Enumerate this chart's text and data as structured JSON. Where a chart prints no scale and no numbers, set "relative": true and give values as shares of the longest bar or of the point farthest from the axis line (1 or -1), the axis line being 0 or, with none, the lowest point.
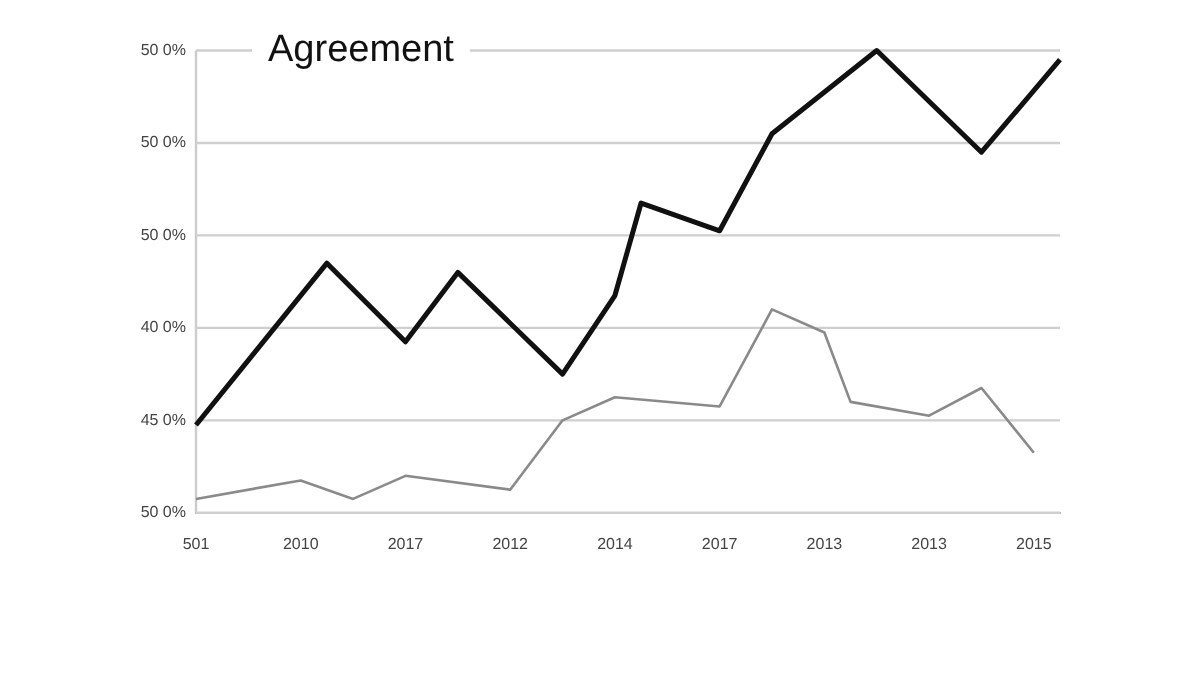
{
  "chart_data": {
    "type": "line",
    "title": "Agreement",
    "relative": true,
    "categories": [
      "501",
      null,
      null,
      null,
      "2010",
      null,
      null,
      null,
      "2017",
      null,
      null,
      null,
      "2012",
      null,
      null,
      null,
      "2014",
      null,
      null,
      null,
      "2017",
      null,
      null,
      null,
      "2013",
      null,
      null,
      null,
      "2013",
      null,
      null,
      null,
      "2015",
      null
    ],
    "annotations": [
      "50 0%",
      "50 0%",
      "50 0%",
      "40 0%",
      "45 0%",
      "50 0%"
    ],
    "grid": "y",
    "marker": "none",
    "line_style": "solid",
    "series": [
      {
        "color": "#111111",
        "values": [
          0.19,
          null,
          null,
          null,
          null,
          0.54,
          null,
          null,
          0.37,
          null,
          0.52,
          null,
          null,
          null,
          0.3,
          null,
          0.47,
          0.67,
          null,
          null,
          0.61,
          null,
          0.82,
          null,
          null,
          null,
          1,
          null,
          null,
          null,
          0.78,
          null,
          null,
          0.98
        ]
      },
      {
        "color": "#8a8a8a",
        "values": [
          0.03,
          null,
          null,
          null,
          0.07,
          null,
          0.03,
          null,
          0.08,
          null,
          null,
          null,
          0.05,
          null,
          0.2,
          null,
          0.25,
          null,
          null,
          null,
          0.23,
          null,
          0.44,
          null,
          0.39,
          0.24,
          null,
          null,
          0.21,
          null,
          0.27,
          null,
          0.13,
          null
        ]
      }
    ]
  }
}
